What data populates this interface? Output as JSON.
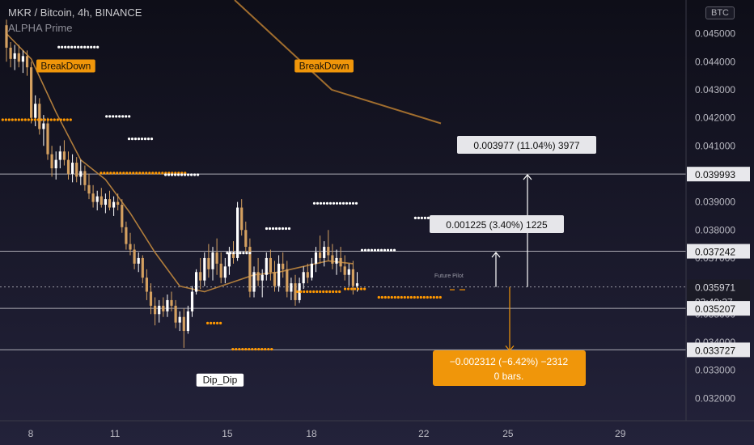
{
  "header": {
    "title": "MKR / Bitcoin, 4h, BINANCE",
    "indicator": "ALPHA Prime",
    "currency_badge": "BTC"
  },
  "colors": {
    "background_top": "#0e0e18",
    "background_bottom": "#23223a",
    "bull": "#ffffff",
    "bear": "#d4a060",
    "ema": "#b07d3c",
    "dots_white": "#ffffff",
    "dots_orange": "#ff9800",
    "label_orange": "#f0960a",
    "hline": "#cfcfd6",
    "axis_text": "#b9b9c2"
  },
  "chart_data": {
    "type": "candlestick",
    "symbol": "MKR / Bitcoin",
    "interval": "4h",
    "exchange": "BINANCE",
    "ylim": [
      0.0312,
      0.0462
    ],
    "x_ticks": [
      "8",
      "11",
      "15",
      "18",
      "22",
      "25",
      "29"
    ],
    "y_ticks": [
      "0.045000",
      "0.044000",
      "0.043000",
      "0.042000",
      "0.041000",
      "0.040000",
      "0.039000",
      "0.038000",
      "0.037000",
      "0.036000",
      "0.035000",
      "0.034000",
      "0.033000",
      "0.032000"
    ],
    "price_labels": [
      {
        "text": "0.039993",
        "value": 0.039993,
        "style": "line"
      },
      {
        "text": "0.037242",
        "value": 0.037242,
        "style": "line"
      },
      {
        "text": "0.035971",
        "value": 0.035971,
        "style": "current"
      },
      {
        "text": "03:49:37",
        "value": 0.03565,
        "style": "countdown"
      },
      {
        "text": "0.035207",
        "value": 0.035207,
        "style": "line"
      },
      {
        "text": "0.033727",
        "value": 0.033727,
        "style": "line"
      }
    ],
    "horizontal_lines": [
      0.039993,
      0.037242,
      0.035207,
      0.033727
    ],
    "current_price": 0.035971,
    "candles": [
      [
        0.0453,
        0.0455,
        0.044,
        0.0445
      ],
      [
        0.0445,
        0.0447,
        0.0438,
        0.0441
      ],
      [
        0.0441,
        0.0446,
        0.0437,
        0.0443
      ],
      [
        0.0443,
        0.0446,
        0.0438,
        0.044
      ],
      [
        0.044,
        0.0444,
        0.0436,
        0.0442
      ],
      [
        0.0442,
        0.0444,
        0.0435,
        0.0438
      ],
      [
        0.0438,
        0.044,
        0.0418,
        0.042
      ],
      [
        0.042,
        0.0428,
        0.0417,
        0.0425
      ],
      [
        0.0425,
        0.0427,
        0.0414,
        0.0416
      ],
      [
        0.0416,
        0.0421,
        0.041,
        0.0418
      ],
      [
        0.0418,
        0.042,
        0.0405,
        0.0407
      ],
      [
        0.0407,
        0.041,
        0.0399,
        0.0402
      ],
      [
        0.0402,
        0.0408,
        0.0398,
        0.0405
      ],
      [
        0.0405,
        0.041,
        0.0402,
        0.0408
      ],
      [
        0.0408,
        0.0412,
        0.0403,
        0.0405
      ],
      [
        0.0405,
        0.0408,
        0.0398,
        0.04
      ],
      [
        0.04,
        0.0407,
        0.0397,
        0.0404
      ],
      [
        0.0404,
        0.0406,
        0.0397,
        0.0399
      ],
      [
        0.0399,
        0.0405,
        0.0396,
        0.0401
      ],
      [
        0.0401,
        0.0403,
        0.0394,
        0.0396
      ],
      [
        0.0396,
        0.04,
        0.0391,
        0.0393
      ],
      [
        0.0393,
        0.0396,
        0.0388,
        0.039
      ],
      [
        0.039,
        0.0394,
        0.0387,
        0.0392
      ],
      [
        0.0392,
        0.0395,
        0.0388,
        0.0389
      ],
      [
        0.0389,
        0.0393,
        0.0386,
        0.0391
      ],
      [
        0.0391,
        0.0394,
        0.0387,
        0.0388
      ],
      [
        0.0388,
        0.0392,
        0.0385,
        0.039
      ],
      [
        0.039,
        0.0393,
        0.0387,
        0.0389
      ],
      [
        0.0389,
        0.0391,
        0.0379,
        0.0381
      ],
      [
        0.0381,
        0.0383,
        0.0373,
        0.0375
      ],
      [
        0.0375,
        0.0379,
        0.0371,
        0.0373
      ],
      [
        0.0373,
        0.0375,
        0.0366,
        0.0368
      ],
      [
        0.0368,
        0.0372,
        0.0365,
        0.037
      ],
      [
        0.037,
        0.0371,
        0.0361,
        0.0363
      ],
      [
        0.0363,
        0.0366,
        0.0355,
        0.0358
      ],
      [
        0.0358,
        0.0361,
        0.035,
        0.0353
      ],
      [
        0.0353,
        0.0356,
        0.0346,
        0.035
      ],
      [
        0.035,
        0.0355,
        0.0347,
        0.0353
      ],
      [
        0.0353,
        0.0356,
        0.0349,
        0.0351
      ],
      [
        0.0351,
        0.0357,
        0.0349,
        0.0355
      ],
      [
        0.0355,
        0.0358,
        0.0351,
        0.0353
      ],
      [
        0.0353,
        0.0355,
        0.0345,
        0.0347
      ],
      [
        0.0347,
        0.0351,
        0.0344,
        0.0349
      ],
      [
        0.0349,
        0.0352,
        0.0338,
        0.0344
      ],
      [
        0.0344,
        0.0353,
        0.0343,
        0.0351
      ],
      [
        0.0351,
        0.036,
        0.0349,
        0.0358
      ],
      [
        0.0358,
        0.0366,
        0.0357,
        0.0365
      ],
      [
        0.0365,
        0.037,
        0.0359,
        0.0362
      ],
      [
        0.0362,
        0.0372,
        0.036,
        0.037
      ],
      [
        0.037,
        0.0375,
        0.0363,
        0.0366
      ],
      [
        0.0366,
        0.0374,
        0.0362,
        0.0372
      ],
      [
        0.0372,
        0.0377,
        0.0364,
        0.0368
      ],
      [
        0.0368,
        0.0372,
        0.0361,
        0.0363
      ],
      [
        0.0363,
        0.037,
        0.0361,
        0.0367
      ],
      [
        0.0367,
        0.0374,
        0.0364,
        0.0372
      ],
      [
        0.0372,
        0.0376,
        0.0368,
        0.037
      ],
      [
        0.037,
        0.039,
        0.0369,
        0.0388
      ],
      [
        0.0388,
        0.0391,
        0.0378,
        0.038
      ],
      [
        0.038,
        0.0383,
        0.0372,
        0.0374
      ],
      [
        0.0374,
        0.0377,
        0.0356,
        0.0358
      ],
      [
        0.0358,
        0.0367,
        0.0356,
        0.0365
      ],
      [
        0.0365,
        0.037,
        0.036,
        0.0362
      ],
      [
        0.0362,
        0.0366,
        0.0356,
        0.0364
      ],
      [
        0.0364,
        0.0372,
        0.0362,
        0.037
      ],
      [
        0.037,
        0.0373,
        0.0362,
        0.0365
      ],
      [
        0.0365,
        0.0369,
        0.0358,
        0.036
      ],
      [
        0.036,
        0.0371,
        0.0358,
        0.0368
      ],
      [
        0.0368,
        0.0372,
        0.0363,
        0.0366
      ],
      [
        0.0366,
        0.0369,
        0.0356,
        0.0358
      ],
      [
        0.0358,
        0.0363,
        0.0355,
        0.0361
      ],
      [
        0.0361,
        0.0364,
        0.0353,
        0.0355
      ],
      [
        0.0355,
        0.0363,
        0.0354,
        0.0361
      ],
      [
        0.0361,
        0.0367,
        0.0359,
        0.0365
      ],
      [
        0.0365,
        0.0368,
        0.0361,
        0.0363
      ],
      [
        0.0363,
        0.037,
        0.0362,
        0.0368
      ],
      [
        0.0368,
        0.0374,
        0.0365,
        0.0372
      ],
      [
        0.0372,
        0.0378,
        0.0368,
        0.037
      ],
      [
        0.037,
        0.0376,
        0.0367,
        0.0374
      ],
      [
        0.0374,
        0.038,
        0.0369,
        0.0371
      ],
      [
        0.0371,
        0.0375,
        0.0366,
        0.0368
      ],
      [
        0.0368,
        0.0373,
        0.0364,
        0.037
      ],
      [
        0.037,
        0.0374,
        0.0365,
        0.0367
      ],
      [
        0.0367,
        0.0371,
        0.0362,
        0.0364
      ],
      [
        0.0364,
        0.0368,
        0.036,
        0.0366
      ],
      [
        0.0366,
        0.0369,
        0.0357,
        0.036
      ],
      [
        0.036,
        0.0365,
        0.0358,
        0.0361
      ]
    ],
    "ema": [
      [
        0,
        0.045
      ],
      [
        6,
        0.0441
      ],
      [
        12,
        0.0422
      ],
      [
        18,
        0.0405
      ],
      [
        24,
        0.0398
      ],
      [
        30,
        0.0386
      ],
      [
        36,
        0.0372
      ],
      [
        42,
        0.036
      ],
      [
        48,
        0.0358
      ],
      [
        54,
        0.0361
      ],
      [
        60,
        0.0364
      ],
      [
        66,
        0.0365
      ],
      [
        72,
        0.0367
      ],
      [
        78,
        0.0369
      ],
      [
        84,
        0.0368
      ]
    ],
    "slow_ma": [
      [
        0.044,
        0.0462
      ],
      [
        0.045,
        0.043
      ],
      [
        0.0463,
        0.0418
      ]
    ],
    "dot_levels": [
      {
        "color": "white",
        "from": 9.0,
        "to": 10.4,
        "value": 0.04452
      },
      {
        "color": "orange",
        "from": 7.0,
        "to": 9.5,
        "value": 0.04193
      },
      {
        "color": "white",
        "from": 10.7,
        "to": 11.6,
        "value": 0.04205
      },
      {
        "color": "white",
        "from": 11.5,
        "to": 12.4,
        "value": 0.04125
      },
      {
        "color": "orange",
        "from": 10.5,
        "to": 13.5,
        "value": 0.04003
      },
      {
        "color": "white",
        "from": 12.8,
        "to": 14.0,
        "value": 0.03997
      },
      {
        "color": "orange",
        "from": 14.3,
        "to": 14.8,
        "value": 0.03468
      },
      {
        "color": "white",
        "from": 15.0,
        "to": 15.9,
        "value": 0.03718
      },
      {
        "color": "orange",
        "from": 15.2,
        "to": 16.6,
        "value": 0.03375
      },
      {
        "color": "white",
        "from": 16.4,
        "to": 17.3,
        "value": 0.03805
      },
      {
        "color": "white",
        "from": 18.1,
        "to": 19.7,
        "value": 0.03895
      },
      {
        "color": "orange",
        "from": 17.5,
        "to": 19.0,
        "value": 0.0358
      },
      {
        "color": "orange",
        "from": 19.2,
        "to": 20.0,
        "value": 0.0359
      },
      {
        "color": "white",
        "from": 19.8,
        "to": 21.0,
        "value": 0.03728
      },
      {
        "color": "orange",
        "from": 20.4,
        "to": 22.6,
        "value": 0.0356
      },
      {
        "color": "white",
        "from": 21.7,
        "to": 22.8,
        "value": 0.03843
      }
    ],
    "signal_labels": [
      {
        "text": "BreakDown",
        "style": "orange",
        "x": 8.2,
        "value": 0.04385
      },
      {
        "text": "BreakDown",
        "style": "orange",
        "x": 17.4,
        "value": 0.04385
      },
      {
        "text": "Dip_Dip",
        "style": "white",
        "x": 13.9,
        "value": 0.03265
      }
    ],
    "watermark": "Future Pilot",
    "measurements": [
      {
        "text": "0.003977 (11.04%) 3977",
        "style": "white",
        "x": 24.7,
        "from": 0.035971,
        "to": 0.03997
      },
      {
        "text": "0.001225 (3.40%) 1225",
        "style": "white",
        "x": 23.8,
        "from": 0.035971,
        "to": 0.0372
      },
      {
        "line1": "−0.002312 (−6.42%) −2312",
        "line2": "0 bars.",
        "style": "orange",
        "x": 24.2,
        "from": 0.035971,
        "to": 0.0337
      }
    ]
  }
}
